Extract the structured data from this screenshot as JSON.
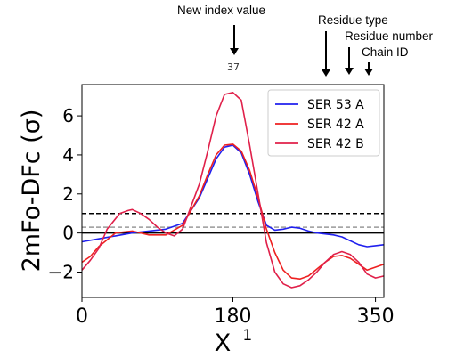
{
  "annotations": {
    "new_index": "New index value",
    "residue_type": "Residue type",
    "residue_number": "Residue number",
    "chain_id": "Chain ID"
  },
  "chart_data": {
    "type": "line",
    "title": "37",
    "xlabel": "X",
    "xlabel_superscript": "1",
    "ylabel": "2mFo-DFc (σ)",
    "xlim": [
      0,
      360
    ],
    "ylim": [
      -3.3,
      7.6
    ],
    "xticks": [
      0,
      180,
      350
    ],
    "yticks": [
      -2,
      0,
      2,
      4,
      6
    ],
    "hlines": [
      {
        "y": 0,
        "color": "#000000",
        "style": "solid"
      },
      {
        "y": 0.3,
        "color": "#999999",
        "style": "dashed"
      },
      {
        "y": 1.0,
        "color": "#000000",
        "style": "dashed"
      }
    ],
    "legend_position": "top-right",
    "series": [
      {
        "name": "SER 53 A",
        "color": "#2020ee",
        "x": [
          0,
          20,
          40,
          60,
          80,
          100,
          120,
          140,
          150,
          160,
          170,
          180,
          190,
          200,
          210,
          220,
          230,
          240,
          250,
          260,
          270,
          280,
          290,
          300,
          310,
          320,
          330,
          340,
          350,
          360
        ],
        "y": [
          -0.45,
          -0.3,
          -0.15,
          0.0,
          0.1,
          0.2,
          0.5,
          1.8,
          2.8,
          3.8,
          4.4,
          4.5,
          4.1,
          3.0,
          1.6,
          0.4,
          0.15,
          0.2,
          0.3,
          0.25,
          0.1,
          0.0,
          -0.05,
          -0.1,
          -0.2,
          -0.4,
          -0.6,
          -0.7,
          -0.65,
          -0.6
        ]
      },
      {
        "name": "SER 42 A",
        "color": "#ee2020",
        "x": [
          0,
          10,
          20,
          40,
          60,
          70,
          80,
          100,
          120,
          140,
          150,
          160,
          170,
          180,
          190,
          200,
          210,
          220,
          230,
          240,
          250,
          260,
          270,
          290,
          300,
          310,
          320,
          330,
          340,
          350,
          360
        ],
        "y": [
          -1.5,
          -1.2,
          -0.7,
          0.0,
          0.1,
          0.0,
          -0.1,
          -0.1,
          0.4,
          1.9,
          3.0,
          4.0,
          4.5,
          4.55,
          4.2,
          3.2,
          1.8,
          0.2,
          -1.0,
          -1.9,
          -2.3,
          -2.35,
          -2.2,
          -1.5,
          -1.2,
          -1.15,
          -1.3,
          -1.6,
          -1.9,
          -1.75,
          -1.6
        ]
      },
      {
        "name": "SER 42 B",
        "color": "#e0204a",
        "x": [
          0,
          10,
          20,
          30,
          45,
          55,
          60,
          70,
          80,
          90,
          100,
          110,
          120,
          140,
          150,
          160,
          170,
          180,
          190,
          200,
          210,
          220,
          230,
          240,
          250,
          260,
          270,
          280,
          290,
          300,
          310,
          320,
          330,
          340,
          350,
          360
        ],
        "y": [
          -1.9,
          -1.4,
          -0.8,
          0.2,
          1.0,
          1.15,
          1.2,
          1.0,
          0.7,
          0.3,
          0.0,
          -0.15,
          0.2,
          2.5,
          4.2,
          6.0,
          7.1,
          7.2,
          6.8,
          4.5,
          2.0,
          -0.5,
          -2.0,
          -2.6,
          -2.8,
          -2.7,
          -2.4,
          -2.0,
          -1.5,
          -1.1,
          -0.95,
          -1.1,
          -1.5,
          -2.1,
          -2.3,
          -2.2
        ]
      }
    ]
  }
}
